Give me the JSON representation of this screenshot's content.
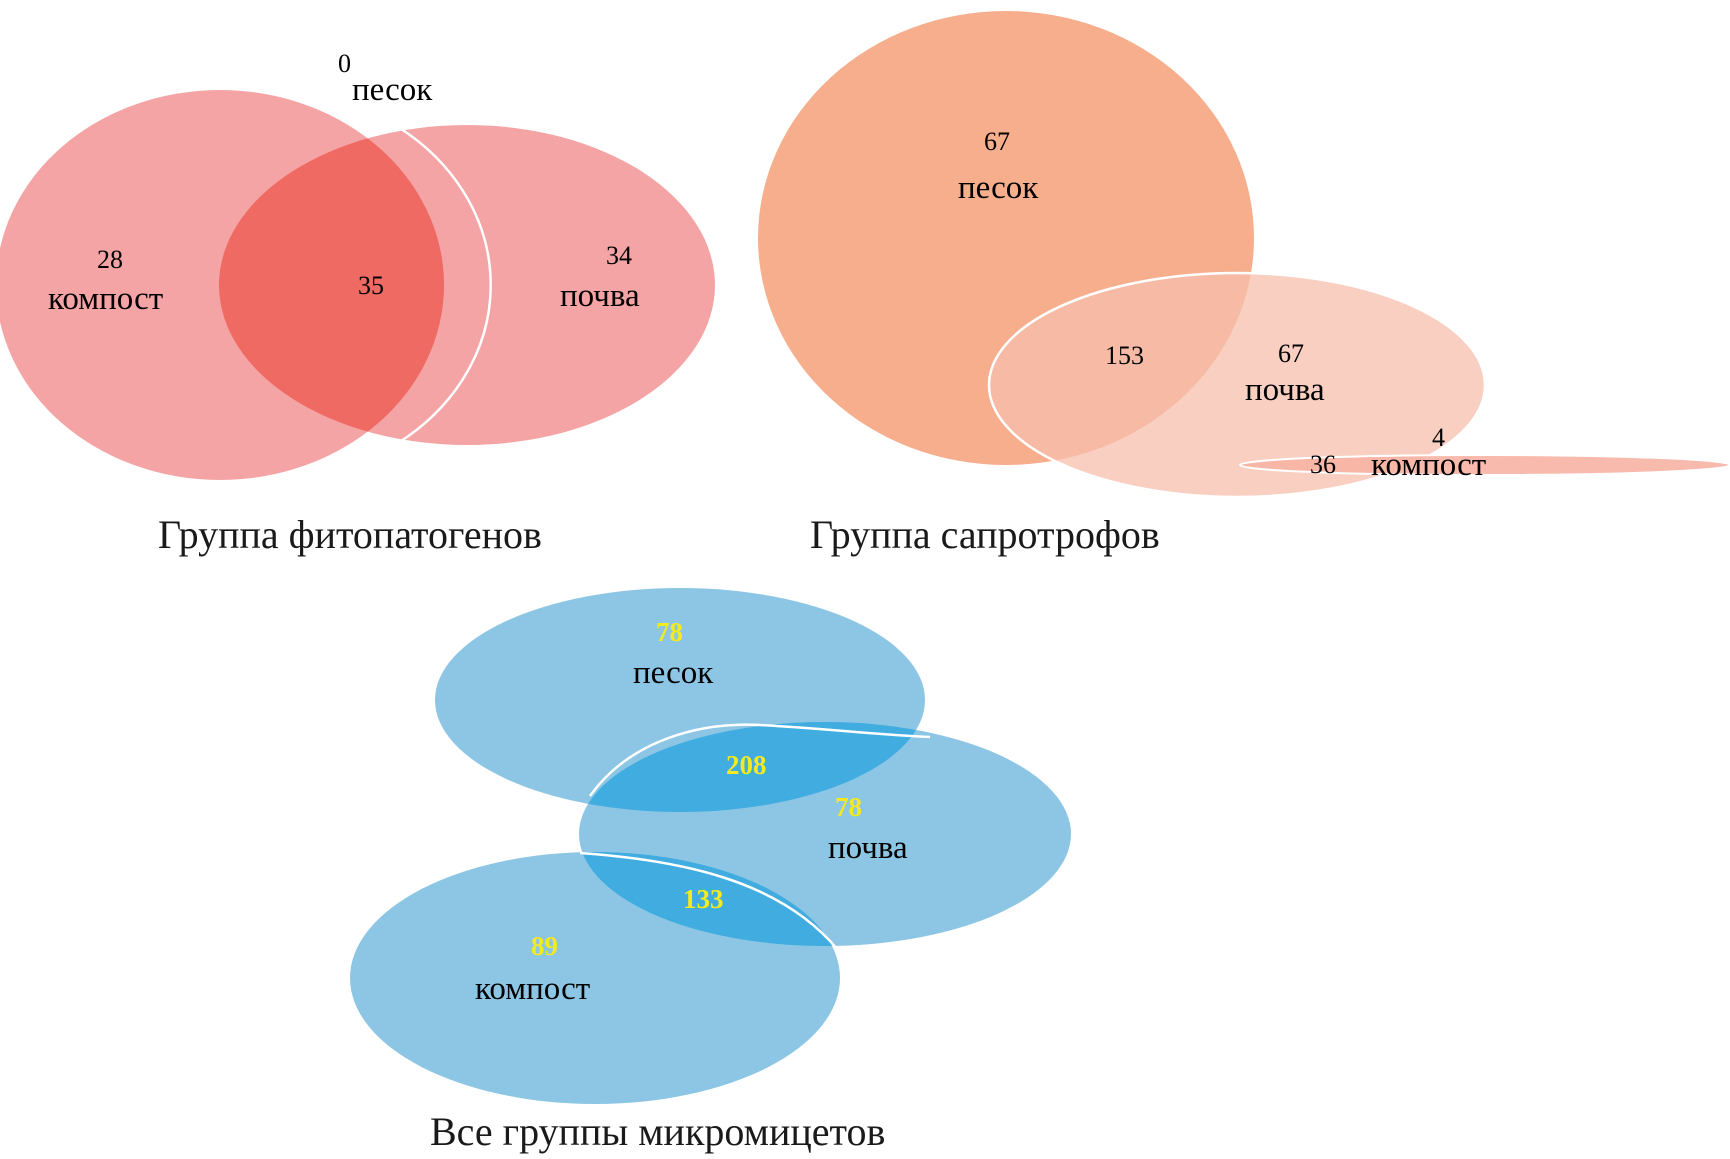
{
  "colors": {
    "phyto_fill": "#f29494",
    "phyto_overlap": "#ee6a63",
    "sapro_sand": "#f5a57f",
    "sapro_soil": "#f7bfae",
    "all_fill": "#8cc6e4",
    "all_overlap": "#40ace0",
    "all_numbers": "#f5ea1f",
    "outline": "#ffffff"
  },
  "diagrams": {
    "phyto": {
      "caption": "Группа фитопатогенов",
      "sand": {
        "count": "0",
        "label": "песок"
      },
      "compost": {
        "count": "28",
        "label": "компост"
      },
      "soil": {
        "count": "34",
        "label": "почва"
      },
      "compost_soil": "35"
    },
    "sapro": {
      "caption": "Группа сапротрофов",
      "sand": {
        "count": "67",
        "label": "песок"
      },
      "soil": {
        "count": "67",
        "label": "почва"
      },
      "compost": {
        "count": "4",
        "label": "компост"
      },
      "sand_soil": "153",
      "soil_compost": "36"
    },
    "all": {
      "caption": "Все группы микромицетов",
      "sand": {
        "count": "78",
        "label": "песок"
      },
      "soil": {
        "count": "78",
        "label": "почва"
      },
      "compost": {
        "count": "89",
        "label": "компост"
      },
      "sand_soil": "208",
      "soil_compost": "133"
    }
  }
}
